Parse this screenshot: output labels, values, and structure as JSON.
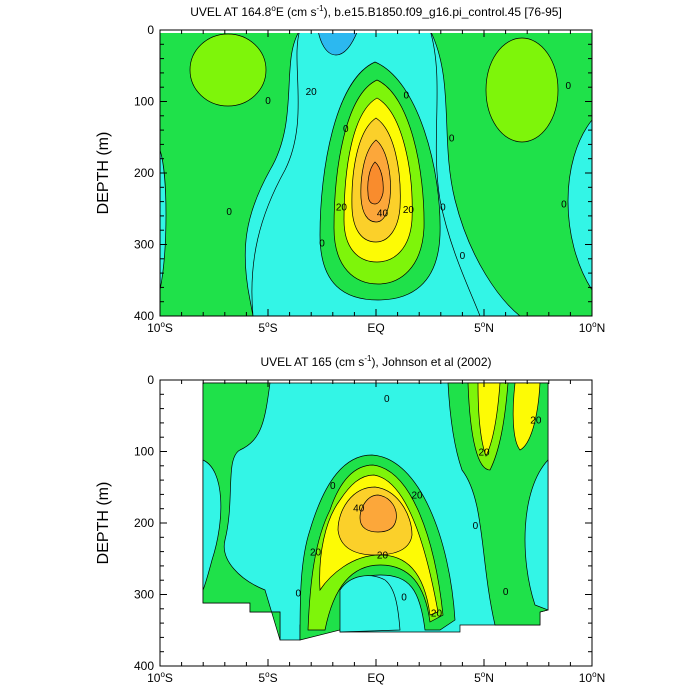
{
  "chart_data": [
    {
      "type": "contour",
      "title": "UVEL AT 164.8°E (cm s⁻¹), b.e15.B1850.f09_g16.pi_control.45 [76-95]",
      "title_parts": {
        "before_degree": "UVEL AT 164.8",
        "unit_start": "E (cm s",
        "exponent": "-1",
        "after": "), b.e15.B1850.f09_g16.pi_control.45 [76-95]"
      },
      "ylabel": "DEPTH (m)",
      "xlim": [
        -10,
        10
      ],
      "ylim": [
        400,
        0
      ],
      "xticks": [
        {
          "value": -10,
          "num": "10",
          "hemi": "S"
        },
        {
          "value": -5,
          "num": "5",
          "hemi": "S"
        },
        {
          "value": 0,
          "num": "EQ",
          "hemi": ""
        },
        {
          "value": 5,
          "num": "5",
          "hemi": "N"
        },
        {
          "value": 10,
          "num": "10",
          "hemi": "N"
        }
      ],
      "yticks": [
        "0",
        "100",
        "200",
        "300",
        "400"
      ],
      "contour_labels": [
        {
          "text": "20",
          "lon": -3.0,
          "depth": 85
        },
        {
          "text": "0",
          "lon": -5.0,
          "depth": 98
        },
        {
          "text": "0",
          "lon": 1.4,
          "depth": 90
        },
        {
          "text": "0",
          "lon": -1.4,
          "depth": 137
        },
        {
          "text": "0",
          "lon": 3.5,
          "depth": 150
        },
        {
          "text": "0",
          "lon": -6.8,
          "depth": 253
        },
        {
          "text": "20",
          "lon": -1.6,
          "depth": 247
        },
        {
          "text": "40",
          "lon": 0.3,
          "depth": 255
        },
        {
          "text": "20",
          "lon": 1.5,
          "depth": 250
        },
        {
          "text": "0",
          "lon": 3.1,
          "depth": 247
        },
        {
          "text": "0",
          "lon": -2.5,
          "depth": 297
        },
        {
          "text": "0",
          "lon": 4.0,
          "depth": 315
        },
        {
          "text": "0",
          "lon": 8.7,
          "depth": 243
        },
        {
          "text": "0",
          "lon": 8.9,
          "depth": 77
        }
      ]
    },
    {
      "type": "contour",
      "title": "UVEL AT 165 (cm s⁻¹), Johnson et al (2002)",
      "title_parts": {
        "before_degree": "",
        "unit_start": "UVEL AT 165 (cm s",
        "exponent": "-1",
        "after": "), Johnson et al (2002)"
      },
      "ylabel": "DEPTH (m)",
      "xlim": [
        -10,
        10
      ],
      "ylim": [
        400,
        0
      ],
      "xticks": [
        {
          "value": -10,
          "num": "10",
          "hemi": "S"
        },
        {
          "value": -5,
          "num": "5",
          "hemi": "S"
        },
        {
          "value": 0,
          "num": "EQ",
          "hemi": ""
        },
        {
          "value": 5,
          "num": "5",
          "hemi": "N"
        },
        {
          "value": 10,
          "num": "10",
          "hemi": "N"
        }
      ],
      "yticks": [
        "0",
        "100",
        "200",
        "300",
        "400"
      ],
      "contour_labels": [
        {
          "text": "0",
          "lon": 0.5,
          "depth": 25
        },
        {
          "text": "20",
          "lon": 7.4,
          "depth": 55
        },
        {
          "text": "20",
          "lon": 5.0,
          "depth": 100
        },
        {
          "text": "0",
          "lon": -2.0,
          "depth": 147
        },
        {
          "text": "20",
          "lon": 1.9,
          "depth": 160
        },
        {
          "text": "40",
          "lon": -0.8,
          "depth": 178
        },
        {
          "text": "20",
          "lon": -2.8,
          "depth": 240
        },
        {
          "text": "20",
          "lon": 0.3,
          "depth": 244
        },
        {
          "text": "0",
          "lon": 4.6,
          "depth": 203
        },
        {
          "text": "0",
          "lon": -3.6,
          "depth": 297
        },
        {
          "text": "0",
          "lon": 1.3,
          "depth": 303
        },
        {
          "text": "20",
          "lon": 2.8,
          "depth": 325
        },
        {
          "text": "0",
          "lon": 6.0,
          "depth": 295
        }
      ]
    }
  ]
}
